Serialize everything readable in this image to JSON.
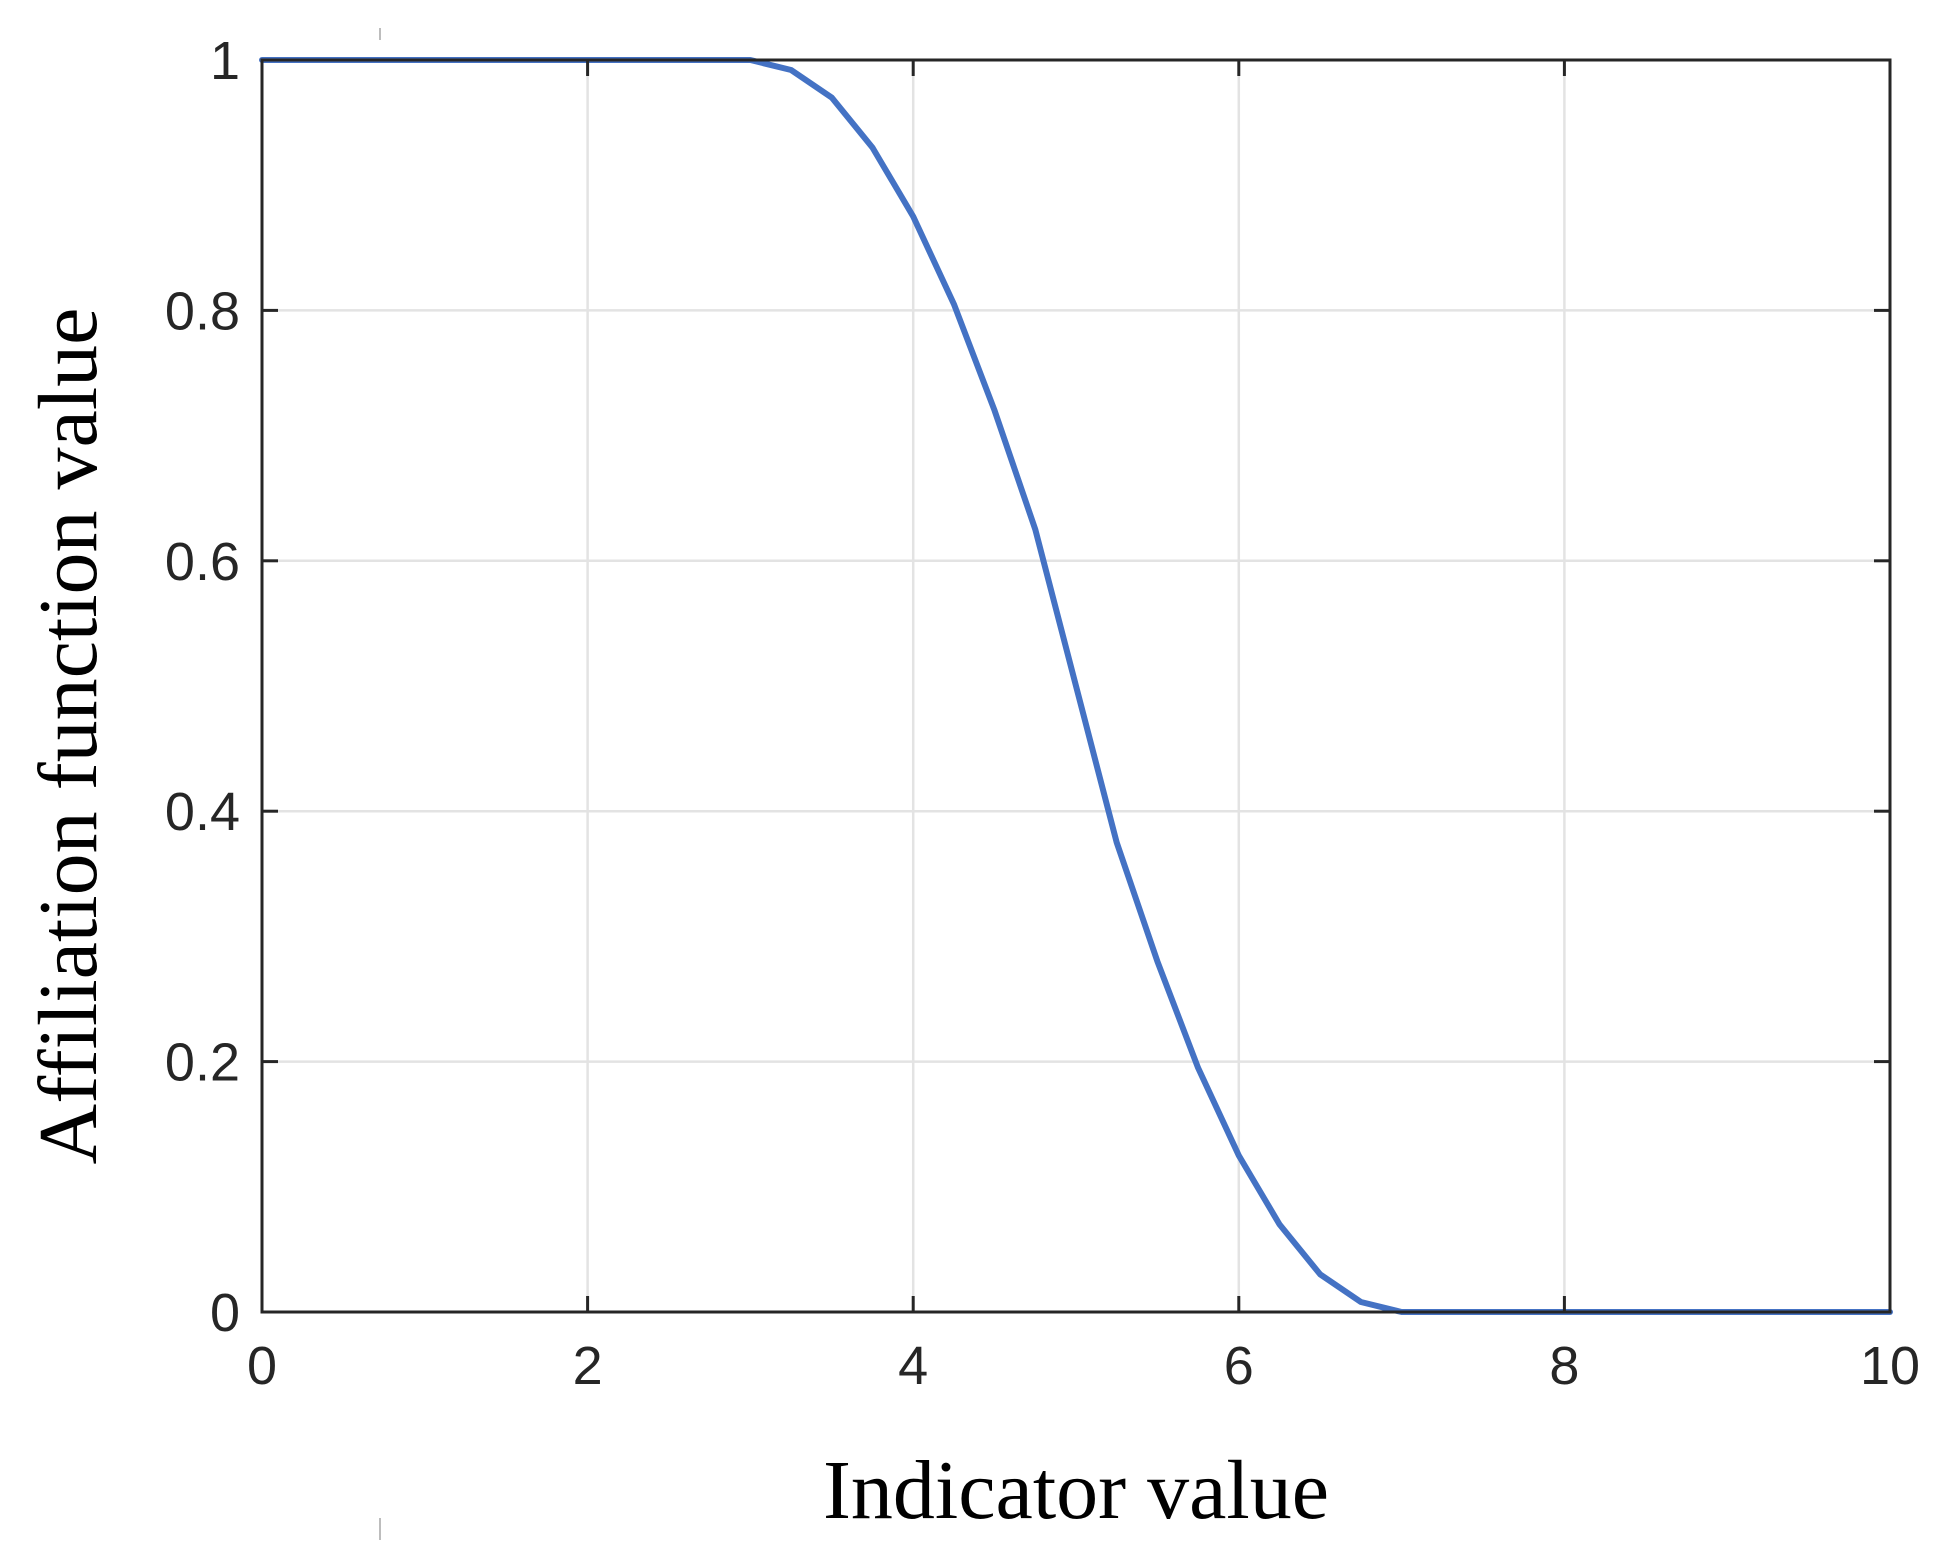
{
  "chart_data": {
    "type": "line",
    "xlabel": "Indicator value",
    "ylabel": "Affiliation function value",
    "xlim": [
      0,
      10
    ],
    "ylim": [
      0,
      1
    ],
    "xticks": [
      0,
      2,
      4,
      6,
      8,
      10
    ],
    "yticks": [
      0,
      0.2,
      0.4,
      0.6,
      0.8,
      1
    ],
    "xtick_labels": [
      "0",
      "2",
      "4",
      "6",
      "8",
      "10"
    ],
    "ytick_labels": [
      "0",
      "0.2",
      "0.4",
      "0.6",
      "0.8",
      "1"
    ],
    "grid": true,
    "series": [
      {
        "color": "#4472c4",
        "x": [
          0,
          1,
          2,
          3,
          3.25,
          3.5,
          3.75,
          4,
          4.25,
          4.5,
          4.75,
          5,
          5.25,
          5.5,
          5.75,
          6,
          6.25,
          6.5,
          6.75,
          7,
          8,
          9,
          10
        ],
        "y": [
          1,
          1,
          1,
          1,
          0.992,
          0.97,
          0.93,
          0.875,
          0.805,
          0.72,
          0.625,
          0.5,
          0.375,
          0.28,
          0.195,
          0.125,
          0.07,
          0.03,
          0.008,
          0,
          0,
          0,
          0
        ]
      }
    ]
  }
}
